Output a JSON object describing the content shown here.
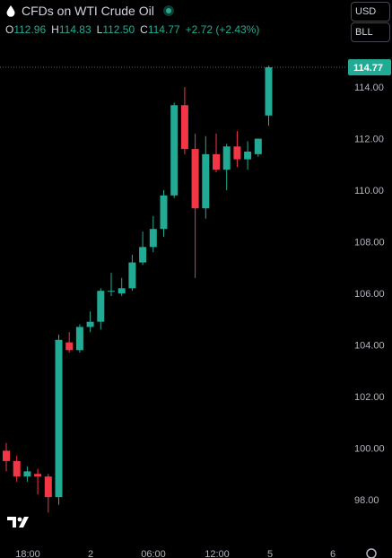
{
  "header": {
    "title": "CFDs on WTI Crude Oil",
    "ohlc": [
      {
        "key": "O",
        "value": "112.96"
      },
      {
        "key": "H",
        "value": "114.83"
      },
      {
        "key": "L",
        "value": "112.50"
      },
      {
        "key": "C",
        "value": "114.77"
      }
    ],
    "change": "+2.72 (+2.43%)",
    "currency_select": "USD",
    "unit_select": "BLL"
  },
  "colors": {
    "up": "#22ab94",
    "down": "#f23645",
    "background": "#000000",
    "price_label_bg": "#22ab94"
  },
  "chart_data": {
    "type": "candlestick",
    "title": "CFDs on WTI Crude Oil",
    "ylim": [
      96.5,
      115.5
    ],
    "y_ticks": [
      "98.00",
      "100.00",
      "102.00",
      "104.00",
      "106.00",
      "108.00",
      "110.00",
      "112.00",
      "114.00"
    ],
    "x_tick_labels": [
      "18:00",
      "2",
      "06:00",
      "12:00",
      "5",
      "6"
    ],
    "last_price": "114.77",
    "candles": [
      {
        "o": 99.9,
        "h": 100.2,
        "l": 99.1,
        "c": 99.5
      },
      {
        "o": 99.5,
        "h": 99.7,
        "l": 98.7,
        "c": 98.9
      },
      {
        "o": 98.9,
        "h": 99.3,
        "l": 98.7,
        "c": 99.1
      },
      {
        "o": 99.0,
        "h": 99.2,
        "l": 98.2,
        "c": 98.9
      },
      {
        "o": 98.9,
        "h": 99.0,
        "l": 97.5,
        "c": 98.1
      },
      {
        "o": 98.1,
        "h": 104.4,
        "l": 97.8,
        "c": 104.2
      },
      {
        "o": 104.1,
        "h": 104.5,
        "l": 103.7,
        "c": 103.8
      },
      {
        "o": 103.8,
        "h": 104.8,
        "l": 103.7,
        "c": 104.7
      },
      {
        "o": 104.7,
        "h": 105.3,
        "l": 104.5,
        "c": 104.9
      },
      {
        "o": 104.9,
        "h": 106.2,
        "l": 104.6,
        "c": 106.1
      },
      {
        "o": 106.1,
        "h": 106.8,
        "l": 105.9,
        "c": 106.1
      },
      {
        "o": 106.0,
        "h": 106.6,
        "l": 105.9,
        "c": 106.2
      },
      {
        "o": 106.2,
        "h": 107.5,
        "l": 106.1,
        "c": 107.2
      },
      {
        "o": 107.2,
        "h": 108.4,
        "l": 107.1,
        "c": 107.8
      },
      {
        "o": 107.8,
        "h": 109.0,
        "l": 107.6,
        "c": 108.5
      },
      {
        "o": 108.5,
        "h": 110.0,
        "l": 108.2,
        "c": 109.8
      },
      {
        "o": 109.8,
        "h": 113.4,
        "l": 109.7,
        "c": 113.3
      },
      {
        "o": 113.3,
        "h": 114.0,
        "l": 111.4,
        "c": 111.6
      },
      {
        "o": 111.6,
        "h": 112.2,
        "l": 106.6,
        "c": 109.3
      },
      {
        "o": 109.3,
        "h": 112.1,
        "l": 108.9,
        "c": 111.4
      },
      {
        "o": 111.4,
        "h": 112.2,
        "l": 110.7,
        "c": 110.8
      },
      {
        "o": 110.8,
        "h": 111.8,
        "l": 110.0,
        "c": 111.7
      },
      {
        "o": 111.7,
        "h": 112.3,
        "l": 110.9,
        "c": 111.2
      },
      {
        "o": 111.2,
        "h": 111.9,
        "l": 110.8,
        "c": 111.5
      },
      {
        "o": 111.4,
        "h": 112.0,
        "l": 111.3,
        "c": 112.0
      },
      {
        "o": 112.9,
        "h": 114.83,
        "l": 112.5,
        "c": 114.77
      }
    ]
  }
}
